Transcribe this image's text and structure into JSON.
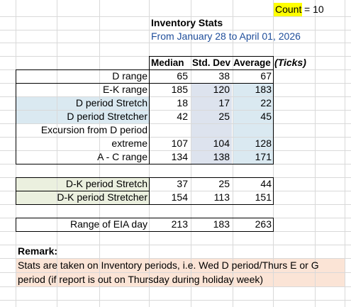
{
  "count": {
    "label": "Count",
    "value": "= 10"
  },
  "title": "Inventory Stats",
  "subtitle": "From January 28 to April 01, 2026",
  "headers": {
    "median": "Median",
    "std": "Std. Dev",
    "avg": "Average",
    "unit": "(Ticks)"
  },
  "rows1": [
    {
      "label": "D range",
      "median": "65",
      "std": "38",
      "avg": "67"
    },
    {
      "label": "E-K range",
      "median": "185",
      "std": "120",
      "avg": "183"
    },
    {
      "label": "D period Stretch",
      "median": "18",
      "std": "17",
      "avg": "22"
    },
    {
      "label": "D period Stretcher",
      "median": "42",
      "std": "25",
      "avg": "45"
    },
    {
      "label": "Excursion from D period",
      "median": "",
      "std": "",
      "avg": ""
    },
    {
      "label": "extreme",
      "median": "107",
      "std": "104",
      "avg": "128"
    },
    {
      "label": "A - C range",
      "median": "134",
      "std": "138",
      "avg": "171"
    }
  ],
  "rows2": [
    {
      "label": "D-K period Stretch",
      "median": "37",
      "std": "25",
      "avg": "44"
    },
    {
      "label": "D-K period Stretcher",
      "median": "154",
      "std": "113",
      "avg": "151"
    }
  ],
  "eia": {
    "label": "Range of EIA day",
    "median": "213",
    "std": "183",
    "avg": "263"
  },
  "remark": {
    "title": "Remark:",
    "line1": "Stats are taken on Inventory periods, i.e. Wed D period/Thurs E or G",
    "line2": "period (if report is out on Thursday during holiday week)"
  },
  "colors": {
    "count_bg": "#ffff00",
    "blue_fill": "#dae9f1",
    "gray_blue": "#dde3ee",
    "green_fill": "#ebf0df",
    "peach_fill": "#fbe4d6",
    "subtitle": "#1f4e9b"
  }
}
